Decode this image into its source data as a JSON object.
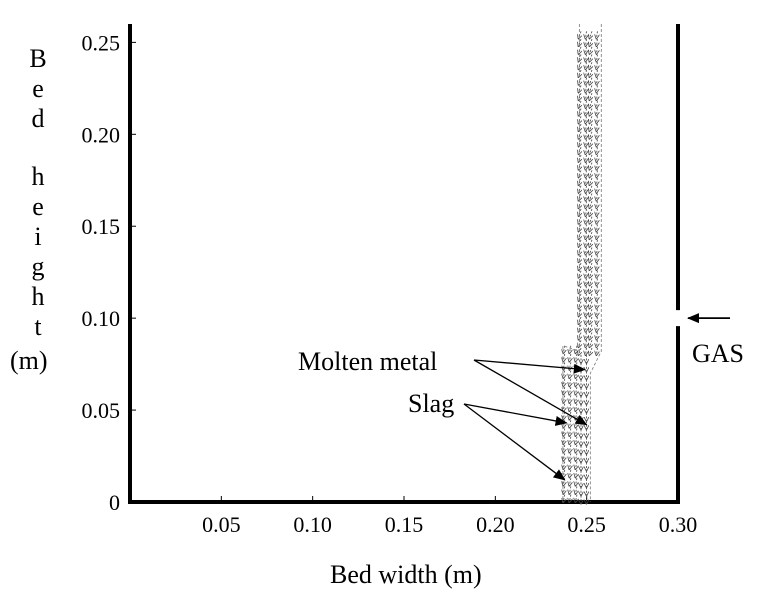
{
  "chart_data": {
    "type": "vector_field",
    "xlabel": "Bed width (m)",
    "ylabel": "Bed height (m)",
    "xlim": [
      0,
      0.3
    ],
    "ylim": [
      0,
      0.26
    ],
    "x_ticks": [
      {
        "value": 0.05,
        "label": "0.05"
      },
      {
        "value": 0.1,
        "label": "0.10"
      },
      {
        "value": 0.15,
        "label": "0.15"
      },
      {
        "value": 0.2,
        "label": "0.20"
      },
      {
        "value": 0.25,
        "label": "0.25"
      },
      {
        "value": 0.3,
        "label": "0.30"
      }
    ],
    "y_ticks": [
      {
        "value": 0,
        "label": "0"
      },
      {
        "value": 0.05,
        "label": "0.05"
      },
      {
        "value": 0.1,
        "label": "0.10"
      },
      {
        "value": 0.15,
        "label": "0.15"
      },
      {
        "value": 0.2,
        "label": "0.20"
      },
      {
        "value": 0.25,
        "label": "0.25"
      }
    ],
    "gas_inlet_height": 0.1,
    "metal_stream": {
      "x_start": 0.246,
      "x_end": 0.258,
      "y_narrow": 0.07,
      "x_narrow_start": 0.246,
      "x_narrow_end": 0.252,
      "y_top": 0.26
    },
    "slag_stream": {
      "x_start": 0.237,
      "x_end": 0.247,
      "y_top": 0.085
    },
    "annotations": [
      {
        "text": "Molten metal",
        "targets": [
          {
            "x": 0.249,
            "y": 0.072
          },
          {
            "x": 0.25,
            "y": 0.042
          }
        ]
      },
      {
        "text": "Slag",
        "targets": [
          {
            "x": 0.239,
            "y": 0.043
          },
          {
            "x": 0.238,
            "y": 0.012
          }
        ]
      },
      {
        "text": "GAS",
        "arrow_target": {
          "x": 0.3,
          "y": 0.1
        }
      }
    ]
  }
}
